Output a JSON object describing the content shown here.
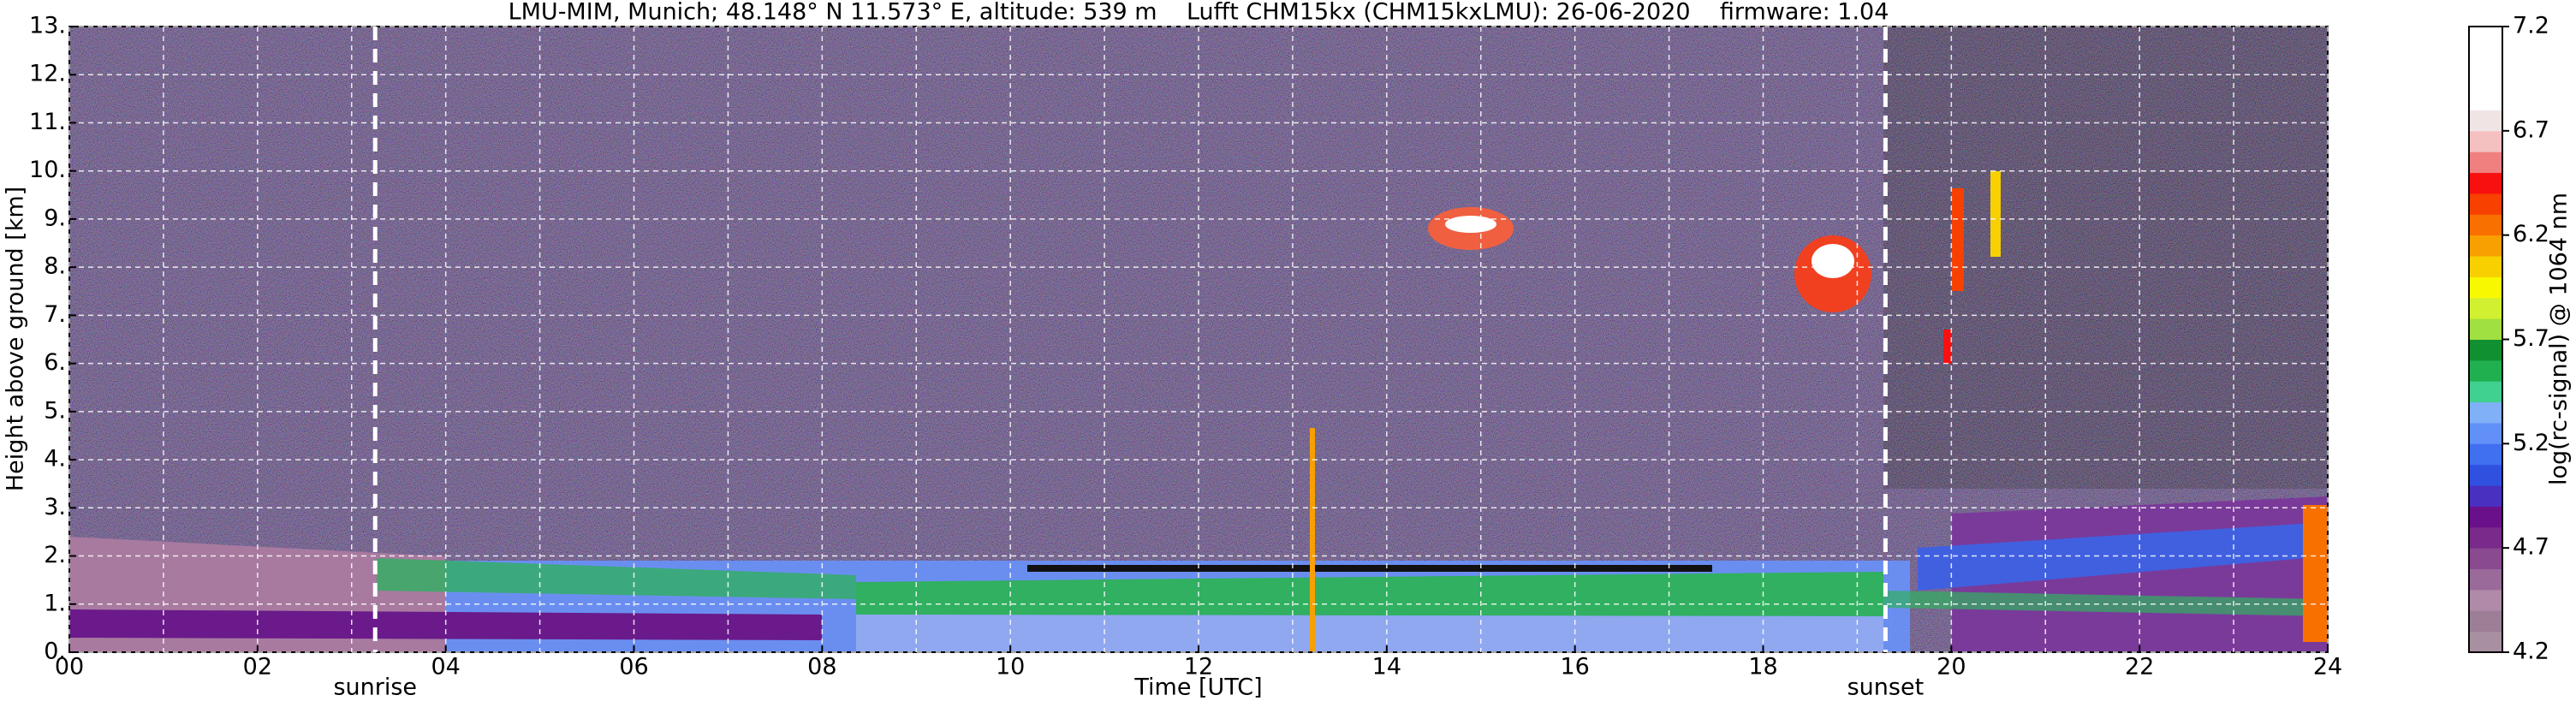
{
  "chart_data": {
    "type": "heatmap",
    "title": "LMU-MIM, Munich; 48.148° N 11.573° E, altitude: 539 m    Lufft CHM15kx (CHM15kxLMU): 26-06-2020    firmware: 1.04",
    "xlabel": "Time [UTC]",
    "ylabel": "Height above ground [km]",
    "xlim": [
      0,
      24
    ],
    "xticks": [
      {
        "value": 0,
        "label": "00"
      },
      {
        "value": 2,
        "label": "02"
      },
      {
        "value": 4,
        "label": "04"
      },
      {
        "value": 6,
        "label": "06"
      },
      {
        "value": 8,
        "label": "08"
      },
      {
        "value": 10,
        "label": "10"
      },
      {
        "value": 12,
        "label": "12"
      },
      {
        "value": 14,
        "label": "14"
      },
      {
        "value": 16,
        "label": "16"
      },
      {
        "value": 18,
        "label": "18"
      },
      {
        "value": 20,
        "label": "20"
      },
      {
        "value": 22,
        "label": "22"
      },
      {
        "value": 24,
        "label": "24"
      }
    ],
    "xminorticks": [
      1,
      3,
      5,
      7,
      9,
      11,
      13,
      15,
      17,
      19,
      21,
      23
    ],
    "ylim": [
      0,
      13
    ],
    "yticks": [
      {
        "value": 0,
        "label": "0."
      },
      {
        "value": 1,
        "label": "1."
      },
      {
        "value": 2,
        "label": "2."
      },
      {
        "value": 3,
        "label": "3."
      },
      {
        "value": 4,
        "label": "4."
      },
      {
        "value": 5,
        "label": "5."
      },
      {
        "value": 6,
        "label": "6."
      },
      {
        "value": 7,
        "label": "7."
      },
      {
        "value": 8,
        "label": "8."
      },
      {
        "value": 9,
        "label": "9."
      },
      {
        "value": 10,
        "label": "10."
      },
      {
        "value": 11,
        "label": "11."
      },
      {
        "value": 12,
        "label": "12."
      },
      {
        "value": 13,
        "label": "13."
      }
    ],
    "grid": true,
    "annotations": [
      {
        "label": "sunrise",
        "x": 3.25
      },
      {
        "label": "sunset",
        "x": 19.3
      }
    ],
    "colorbar": {
      "label": "log(rc-signal) @ 1064 nm",
      "lim": [
        4.2,
        7.2
      ],
      "ticks": [
        4.2,
        4.7,
        5.2,
        5.7,
        6.2,
        6.7,
        7.2
      ],
      "colors": [
        "#a890a0",
        "#9c7e96",
        "#b08aa8",
        "#9a6a9a",
        "#8a4a90",
        "#7a2a8a",
        "#6a108a",
        "#4a30c0",
        "#3050e0",
        "#4070f0",
        "#6090f8",
        "#80b0f8",
        "#40d090",
        "#20b050",
        "#109030",
        "#a0e040",
        "#d0f030",
        "#f8f800",
        "#f8d000",
        "#f8a000",
        "#f87000",
        "#f84000",
        "#f81010",
        "#f08080",
        "#f4c0c0",
        "#f0e4e4",
        "#ffffff",
        "#ffffff",
        "#ffffff",
        "#ffffff"
      ]
    }
  }
}
